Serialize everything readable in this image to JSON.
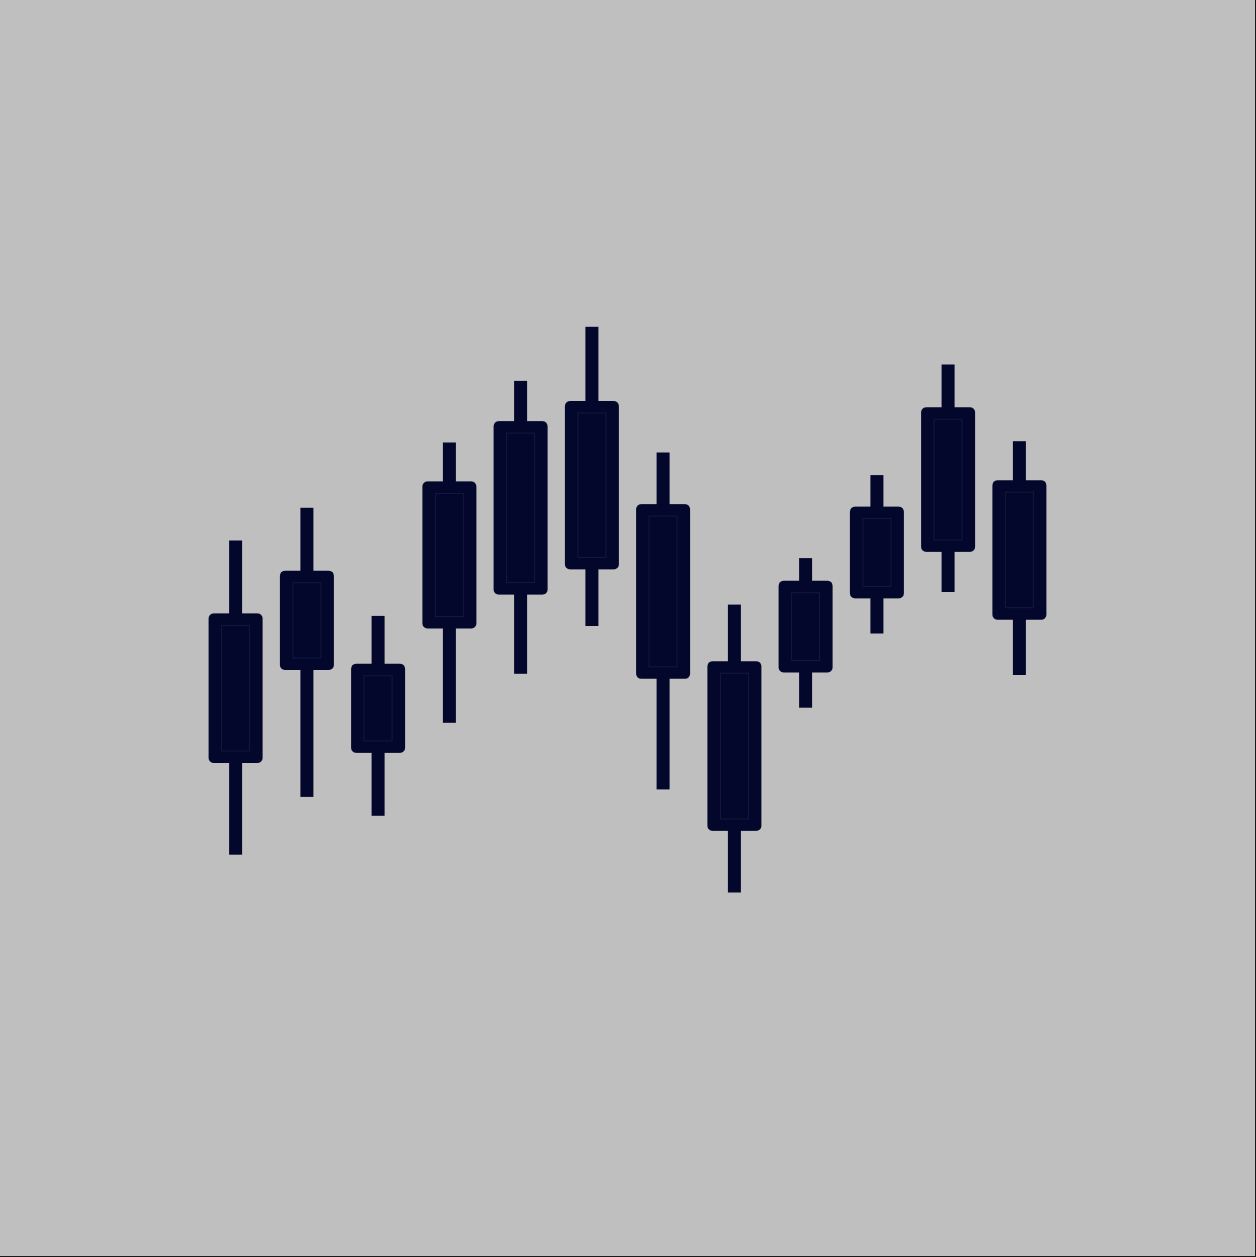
{
  "colors": {
    "background": "#bfbfbf",
    "candle": "#03072b",
    "candle_inner_outline": "#12183f"
  },
  "chart_data": {
    "type": "candlestick",
    "title": "",
    "xlabel": "",
    "ylabel": "",
    "grid": false,
    "legend": "none",
    "axes_visible": false,
    "ylim": [
      0,
      100
    ],
    "candles": [
      {
        "open": 39.3,
        "close": 51.2,
        "high": 57.0,
        "low": 32.0
      },
      {
        "open": 46.7,
        "close": 54.6,
        "high": 59.6,
        "low": 36.6
      },
      {
        "open": 40.1,
        "close": 47.2,
        "high": 51.0,
        "low": 35.1
      },
      {
        "open": 50.0,
        "close": 61.7,
        "high": 64.8,
        "low": 42.5
      },
      {
        "open": 52.7,
        "close": 66.5,
        "high": 69.7,
        "low": 46.4
      },
      {
        "open": 54.7,
        "close": 68.1,
        "high": 74.0,
        "low": 50.2
      },
      {
        "open": 46.0,
        "close": 59.9,
        "high": 64.0,
        "low": 37.2
      },
      {
        "open": 33.9,
        "close": 47.4,
        "high": 51.9,
        "low": 29.0
      },
      {
        "open": 46.5,
        "close": 53.8,
        "high": 55.6,
        "low": 43.7
      },
      {
        "open": 52.4,
        "close": 59.7,
        "high": 62.2,
        "low": 49.6
      },
      {
        "open": 56.1,
        "close": 67.6,
        "high": 71.0,
        "low": 52.9
      },
      {
        "open": 50.7,
        "close": 61.8,
        "high": 64.9,
        "low": 46.3
      }
    ]
  }
}
